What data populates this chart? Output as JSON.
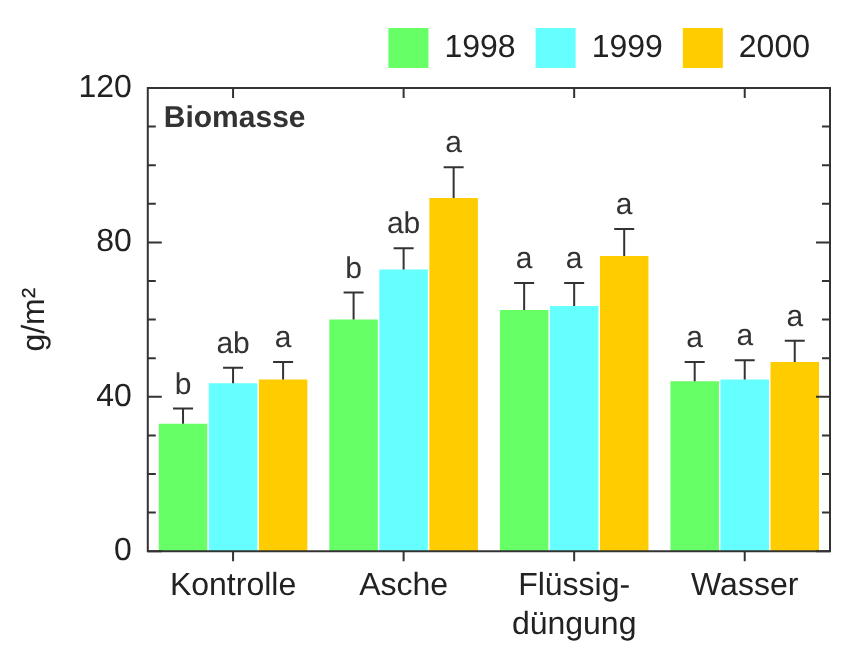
{
  "chart_data": {
    "type": "bar",
    "title": "Biomasse",
    "ylabel": "g/m²",
    "categories": [
      "Kontrolle",
      "Asche",
      "Flüssig-\ndüngung",
      "Wasser"
    ],
    "series": [
      {
        "name": "1998",
        "color": "#66ff66",
        "values": [
          33,
          60,
          62.5,
          44
        ],
        "errors": [
          [
            33,
            37
          ],
          [
            60,
            67
          ],
          [
            62.5,
            69.5
          ],
          [
            44,
            49
          ]
        ],
        "value_labels": [
          "b",
          "b",
          "a",
          "a"
        ]
      },
      {
        "name": "1999",
        "color": "#66ffff",
        "values": [
          43.5,
          73,
          63.5,
          44.5
        ],
        "errors": [
          [
            43.5,
            47.5
          ],
          [
            73,
            78.5
          ],
          [
            63.5,
            69.5
          ],
          [
            44.5,
            49.5
          ]
        ],
        "value_labels": [
          "ab",
          "ab",
          "a",
          "a"
        ]
      },
      {
        "name": "2000",
        "color": "#ffcc00",
        "values": [
          44.5,
          91.5,
          76.5,
          49
        ],
        "errors": [
          [
            44.5,
            49
          ],
          [
            91.5,
            99.5
          ],
          [
            76.5,
            83.5
          ],
          [
            49,
            54.5
          ]
        ],
        "value_labels": [
          "a",
          "a",
          "a",
          "a"
        ]
      }
    ],
    "ylim": [
      0,
      120
    ],
    "yticks": [
      0,
      {
        "value": 10,
        "label": null
      },
      {
        "value": 20,
        "label": null
      },
      {
        "value": 30,
        "label": null
      },
      40,
      {
        "value": 50,
        "label": null
      },
      {
        "value": 60,
        "label": null
      },
      {
        "value": 70,
        "label": null
      },
      80,
      {
        "value": 90,
        "label": null
      },
      {
        "value": 100,
        "label": null
      },
      {
        "value": 110,
        "label": null
      },
      120
    ],
    "grid": false,
    "legend": "top right"
  }
}
